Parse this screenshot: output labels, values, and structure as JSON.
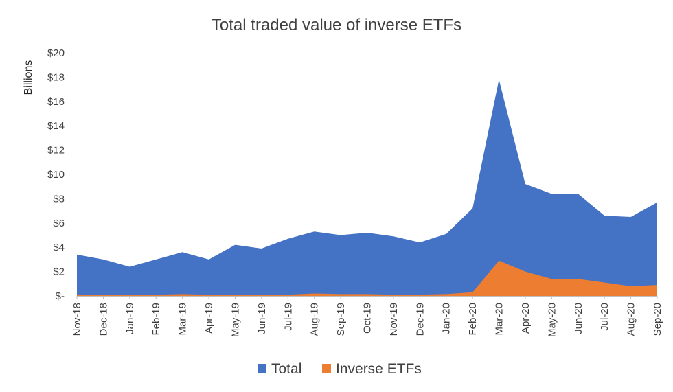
{
  "chart_data": {
    "type": "area",
    "title": "Total traded value of inverse ETFs",
    "ylabel": "Billions",
    "xlabel": "",
    "ylim": [
      0,
      20
    ],
    "yticks": [
      {
        "value": 0,
        "label": "$-"
      },
      {
        "value": 2,
        "label": "$2"
      },
      {
        "value": 4,
        "label": "$4"
      },
      {
        "value": 6,
        "label": "$6"
      },
      {
        "value": 8,
        "label": "$8"
      },
      {
        "value": 10,
        "label": "$10"
      },
      {
        "value": 12,
        "label": "$12"
      },
      {
        "value": 14,
        "label": "$14"
      },
      {
        "value": 16,
        "label": "$16"
      },
      {
        "value": 18,
        "label": "$18"
      },
      {
        "value": 20,
        "label": "$20"
      }
    ],
    "categories": [
      "Nov-18",
      "Dec-18",
      "Jan-19",
      "Feb-19",
      "Mar-19",
      "Apr-19",
      "May-19",
      "Jun-19",
      "Jul-19",
      "Aug-19",
      "Sep-19",
      "Oct-19",
      "Nov-19",
      "Dec-19",
      "Jan-20",
      "Feb-20",
      "Mar-20",
      "Apr-20",
      "May-20",
      "Jun-20",
      "Jul-20",
      "Aug-20",
      "Sep-20"
    ],
    "series": [
      {
        "name": "Total",
        "color": "#4472C4",
        "values": [
          3.4,
          3.0,
          2.4,
          3.0,
          3.6,
          3.0,
          4.2,
          3.9,
          4.7,
          5.3,
          5.0,
          5.2,
          4.9,
          4.4,
          5.1,
          7.2,
          17.8,
          9.2,
          8.4,
          8.4,
          6.6,
          6.5,
          7.7
        ]
      },
      {
        "name": "Inverse ETFs",
        "color": "#ED7D31",
        "values": [
          0.1,
          0.1,
          0.1,
          0.1,
          0.15,
          0.1,
          0.1,
          0.1,
          0.1,
          0.2,
          0.15,
          0.15,
          0.1,
          0.1,
          0.15,
          0.3,
          2.9,
          2.0,
          1.4,
          1.4,
          1.1,
          0.8,
          0.9
        ]
      }
    ],
    "legend": "bottom",
    "grid": false
  }
}
